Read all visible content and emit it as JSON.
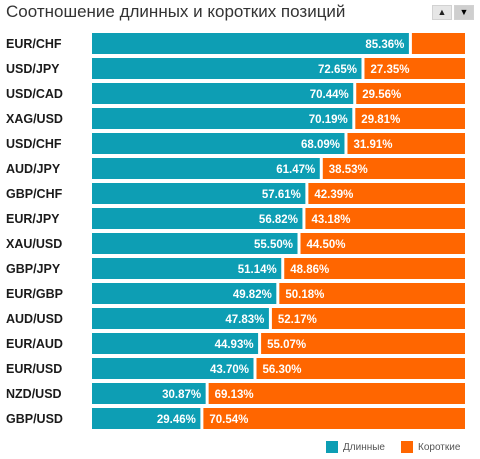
{
  "title": "Соотношение длинных и коротких позиций",
  "sort": {
    "up_icon": "triangle-up-icon",
    "down_icon": "triangle-down-icon"
  },
  "colors": {
    "long": "#0d9eb4",
    "short": "#ff6600"
  },
  "legend": {
    "long_label": "Длинные",
    "short_label": "Короткие"
  },
  "chart_data": {
    "type": "bar",
    "orientation": "horizontal",
    "stacked": true,
    "percent": true,
    "title": "Соотношение длинных и коротких позиций",
    "categories": [
      "EUR/CHF",
      "USD/JPY",
      "USD/CAD",
      "XAG/USD",
      "USD/CHF",
      "AUD/JPY",
      "GBP/CHF",
      "EUR/JPY",
      "XAU/USD",
      "GBP/JPY",
      "EUR/GBP",
      "AUD/USD",
      "EUR/AUD",
      "EUR/USD",
      "NZD/USD",
      "GBP/USD"
    ],
    "series": [
      {
        "name": "Длинные",
        "values": [
          85.36,
          72.65,
          70.44,
          70.19,
          68.09,
          61.47,
          57.61,
          56.82,
          55.5,
          51.14,
          49.82,
          47.83,
          44.93,
          43.7,
          30.87,
          29.46
        ],
        "labels": [
          "85.36%",
          "72.65%",
          "70.44%",
          "70.19%",
          "68.09%",
          "61.47%",
          "57.61%",
          "56.82%",
          "55.50%",
          "51.14%",
          "49.82%",
          "47.83%",
          "44.93%",
          "43.70%",
          "30.87%",
          "29.46%"
        ]
      },
      {
        "name": "Короткие",
        "values": [
          14.64,
          27.35,
          29.56,
          29.81,
          31.91,
          38.53,
          42.39,
          43.18,
          44.5,
          48.86,
          50.18,
          52.17,
          55.07,
          56.3,
          69.13,
          70.54
        ],
        "labels": [
          "",
          "27.35%",
          "29.56%",
          "29.81%",
          "31.91%",
          "38.53%",
          "42.39%",
          "43.18%",
          "44.50%",
          "48.86%",
          "50.18%",
          "52.17%",
          "55.07%",
          "56.30%",
          "69.13%",
          "70.54%"
        ]
      }
    ],
    "xlim": [
      0,
      100
    ],
    "grid": false,
    "legend_position": "bottom-right"
  }
}
